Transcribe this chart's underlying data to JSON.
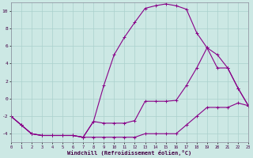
{
  "xlabel": "Windchill (Refroidissement éolien,°C)",
  "background_color": "#cce8e4",
  "grid_color": "#aad0cc",
  "line_color": "#880088",
  "hours": [
    0,
    1,
    2,
    3,
    4,
    5,
    6,
    7,
    8,
    9,
    10,
    11,
    12,
    13,
    14,
    15,
    16,
    17,
    18,
    19,
    20,
    21,
    22,
    23
  ],
  "line_peak": [
    -2,
    -3,
    -4,
    -4.2,
    -4.2,
    -4.2,
    -4.2,
    -4.4,
    -2.6,
    1.5,
    5.0,
    7.0,
    8.7,
    10.3,
    10.6,
    10.8,
    10.6,
    10.2,
    7.5,
    5.8,
    5.0,
    3.5,
    1.2,
    -0.8
  ],
  "line_mid": [
    -2,
    -3,
    -4,
    -4.2,
    -4.2,
    -4.2,
    -4.2,
    -4.4,
    -2.6,
    -2.8,
    -2.8,
    -2.8,
    -2.5,
    -0.3,
    -0.3,
    -0.3,
    -0.2,
    1.5,
    3.5,
    5.8,
    3.5,
    3.5,
    1.2,
    -0.8
  ],
  "line_low": [
    -2,
    -3,
    -4,
    -4.2,
    -4.2,
    -4.2,
    -4.2,
    -4.4,
    -4.4,
    -4.4,
    -4.4,
    -4.4,
    -4.4,
    -4.0,
    -4.0,
    -4.0,
    -4.0,
    -3.0,
    -2.0,
    -1.0,
    -1.0,
    -1.0,
    -0.5,
    -0.8
  ],
  "ylim": [
    -5,
    11
  ],
  "yticks": [
    -4,
    -2,
    0,
    2,
    4,
    6,
    8,
    10
  ],
  "xlim": [
    0,
    23
  ],
  "figsize": [
    3.2,
    2.0
  ],
  "dpi": 100
}
